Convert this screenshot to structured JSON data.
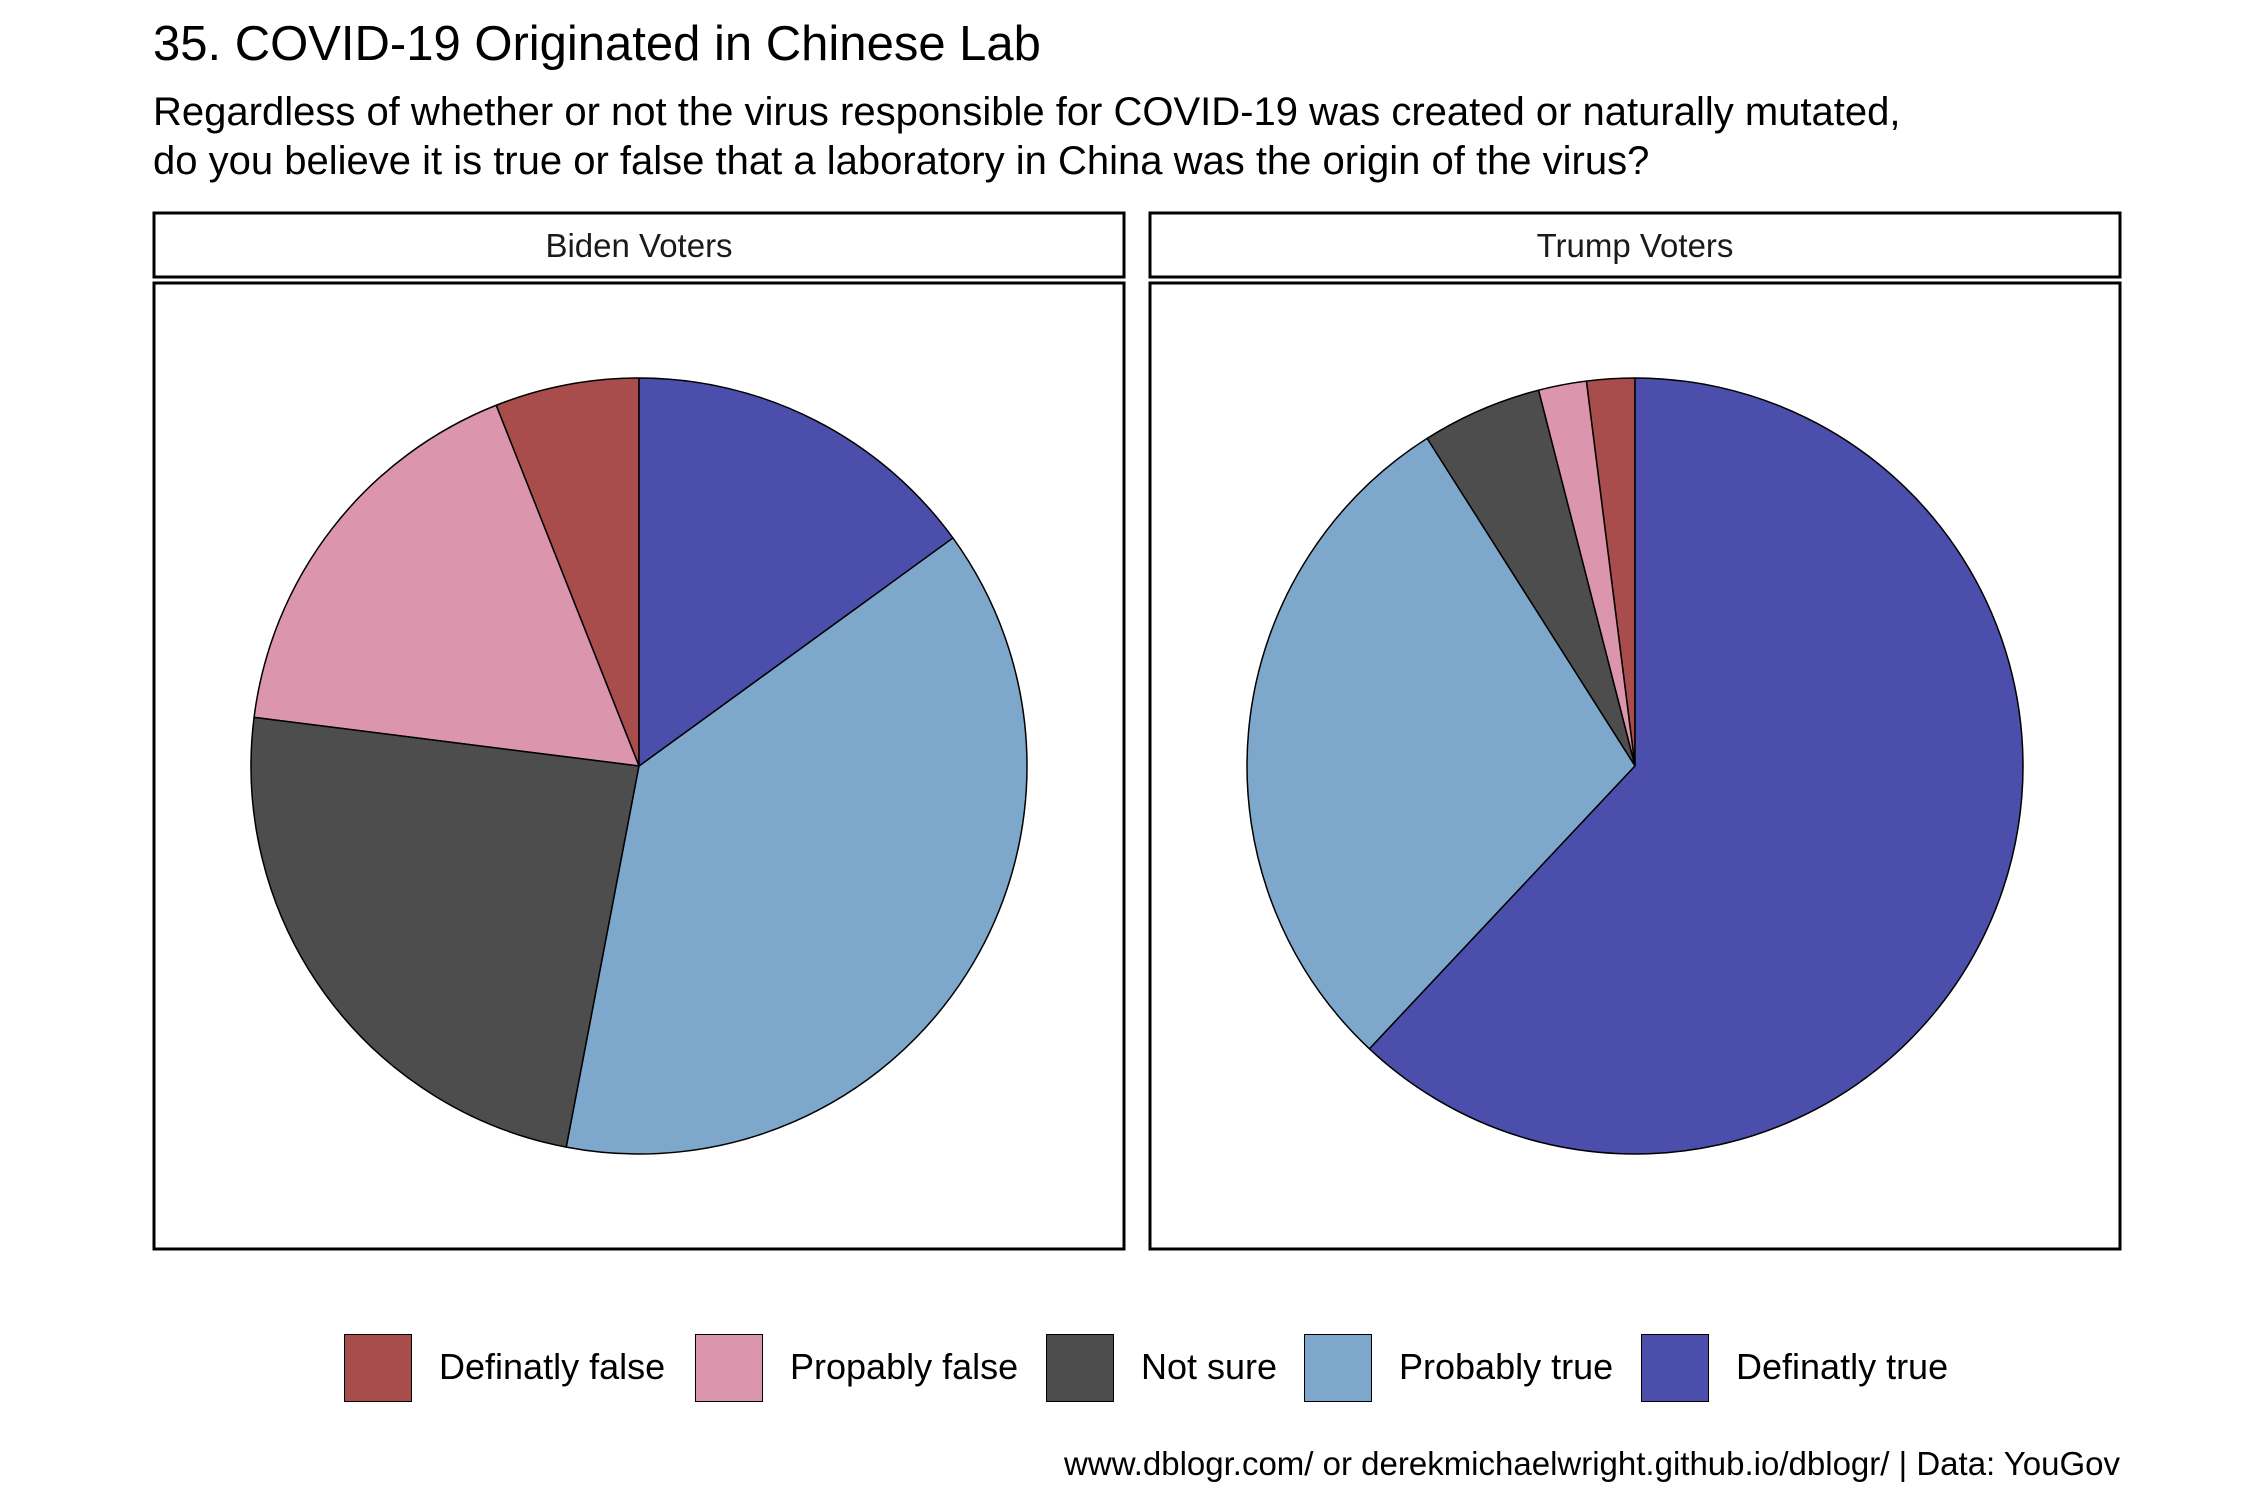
{
  "title": "35. COVID-19 Originated in Chinese Lab",
  "subtitle_lines": [
    "Regardless of whether or not the virus responsible for COVID-19 was created or naturally mutated,",
    "do you believe it is true or false that a laboratory in China was the origin of the virus?"
  ],
  "caption": "www.dblogr.com/ or derekmichaelwright.github.io/dblogr/ | Data: YouGov",
  "legend": [
    {
      "label": "Definatly false",
      "color": "#A84C4C"
    },
    {
      "label": "Propably false",
      "color": "#DB95AC"
    },
    {
      "label": "Not sure",
      "color": "#4D4D4D"
    },
    {
      "label": "Probably true",
      "color": "#7EA8CB"
    },
    {
      "label": "Definatly true",
      "color": "#4C4EAC"
    }
  ],
  "chart_data": {
    "type": "pie",
    "categories": [
      "Definatly false",
      "Propably false",
      "Not sure",
      "Probably true",
      "Definatly true"
    ],
    "colors": [
      "#A84C4C",
      "#DB95AC",
      "#4D4D4D",
      "#7EA8CB",
      "#4C4EAC"
    ],
    "panels": [
      {
        "name": "Biden Voters",
        "values": [
          6,
          17,
          24,
          38,
          15
        ]
      },
      {
        "name": "Trump Voters",
        "values": [
          2,
          2,
          5,
          29,
          62
        ]
      }
    ]
  }
}
